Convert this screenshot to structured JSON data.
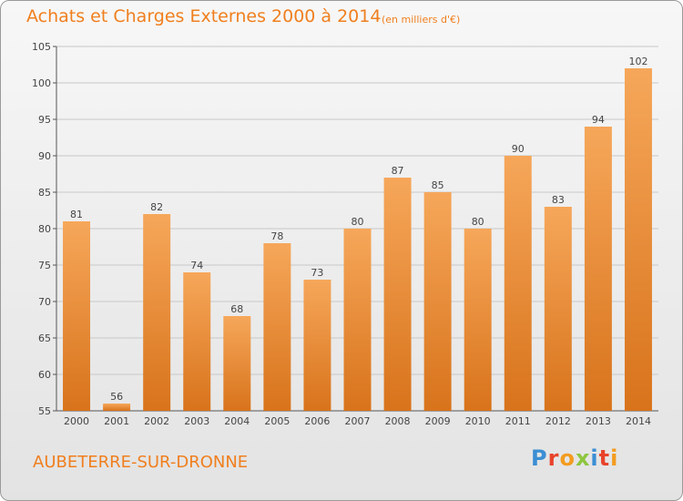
{
  "header": {
    "title": "Achats et Charges Externes 2000 à 2014",
    "unit": "(en milliers d'€)"
  },
  "footer": {
    "commune": "AUBETERRE-SUR-DRONNE",
    "logo_text": "Proxiti"
  },
  "colors": {
    "accent": "#f07f1e",
    "bar_top": "#f6a75a",
    "bar_bottom": "#d8731b",
    "grid": "#c8c8c8",
    "logo_letters": [
      "#3b8ed4",
      "#e8432b",
      "#f39c1f",
      "#8dc63f",
      "#3b8ed4",
      "#e8432b",
      "#f39c1f"
    ]
  },
  "chart_data": {
    "type": "bar",
    "title": "Achats et Charges Externes 2000 à 2014",
    "subtitle": "(en milliers d'€)",
    "xlabel": "",
    "ylabel": "",
    "categories": [
      "2000",
      "2001",
      "2002",
      "2003",
      "2004",
      "2005",
      "2006",
      "2007",
      "2008",
      "2009",
      "2010",
      "2011",
      "2012",
      "2013",
      "2014"
    ],
    "values": [
      81,
      56,
      82,
      74,
      68,
      78,
      73,
      80,
      87,
      85,
      80,
      90,
      83,
      94,
      102
    ],
    "ylim": [
      55,
      105
    ],
    "yticks": [
      55,
      60,
      65,
      70,
      75,
      80,
      85,
      90,
      95,
      100,
      105
    ],
    "grid": true,
    "data_labels": true
  }
}
